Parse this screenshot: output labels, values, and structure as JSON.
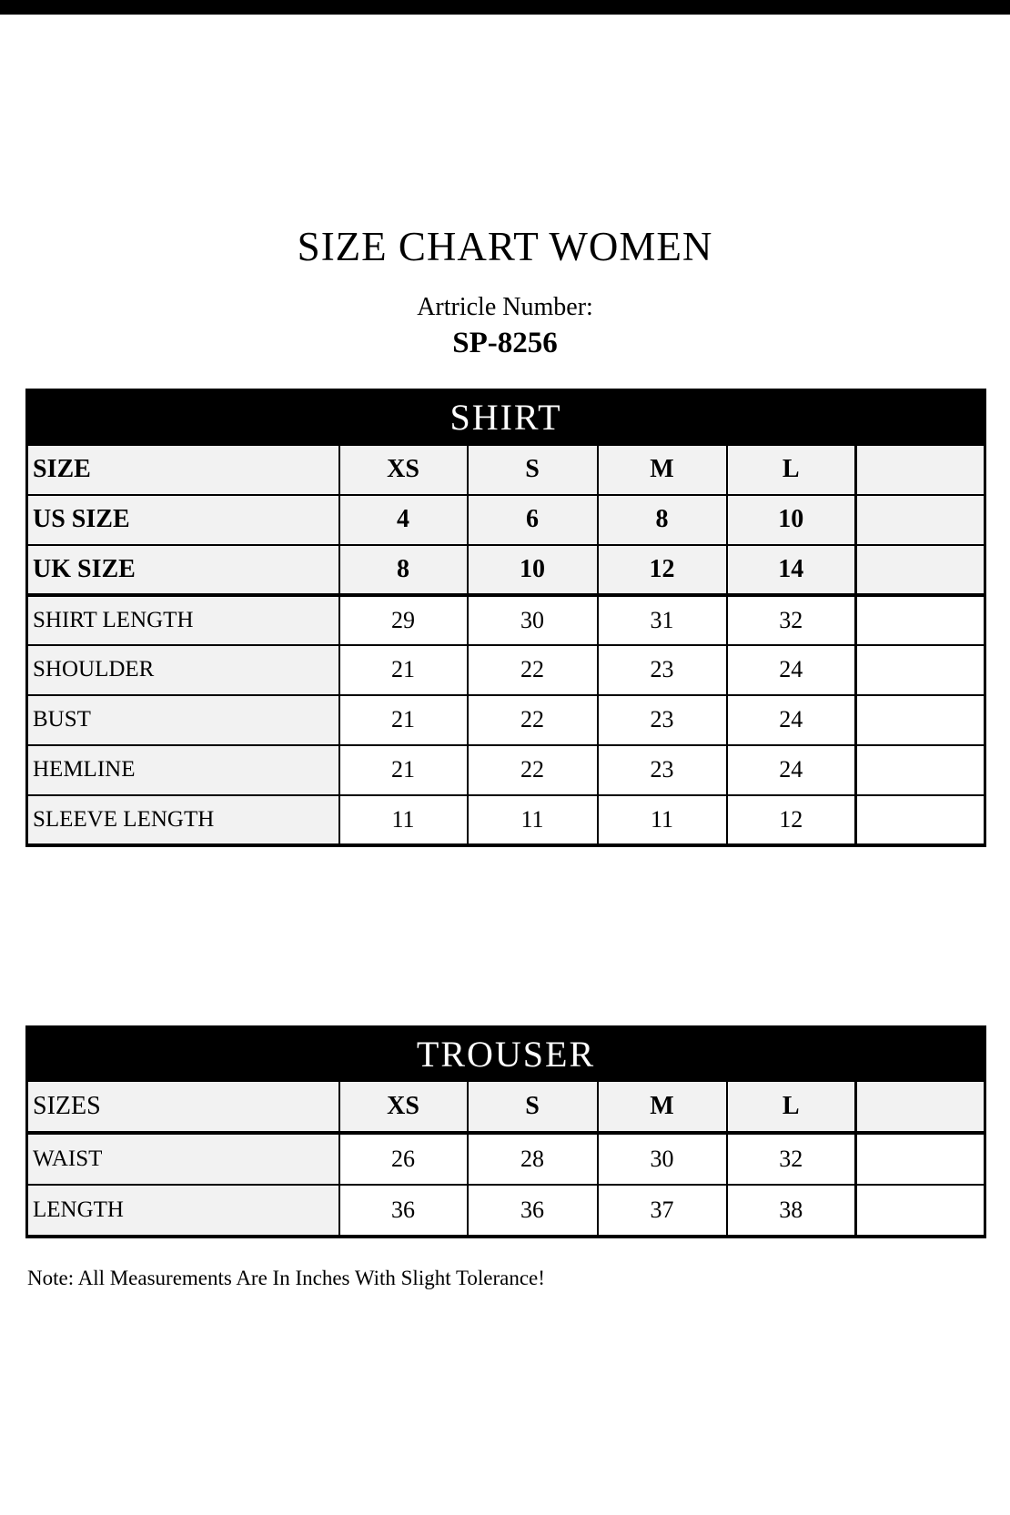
{
  "page": {
    "title": "SIZE CHART WOMEN",
    "article_label": "Artricle Number:",
    "article_number": "SP-8256",
    "note": "Note: All Measurements Are In Inches With Slight Tolerance!"
  },
  "colors": {
    "banner_bg": "#000000",
    "banner_text": "#ffffff",
    "header_cell_bg": "#f2f2f2",
    "value_cell_bg": "#ffffff",
    "border": "#000000",
    "page_bg": "#ffffff",
    "text": "#000000"
  },
  "shirt_table": {
    "banner": "SHIRT",
    "header_rows": [
      {
        "label": "SIZE",
        "values": [
          "XS",
          "S",
          "M",
          "L",
          ""
        ]
      },
      {
        "label": "US SIZE",
        "values": [
          "4",
          "6",
          "8",
          "10",
          ""
        ]
      },
      {
        "label": "UK SIZE",
        "values": [
          "8",
          "10",
          "12",
          "14",
          ""
        ]
      }
    ],
    "measure_rows": [
      {
        "label": "SHIRT LENGTH",
        "values": [
          "29",
          "30",
          "31",
          "32",
          ""
        ]
      },
      {
        "label": "SHOULDER",
        "values": [
          "21",
          "22",
          "23",
          "24",
          ""
        ]
      },
      {
        "label": "BUST",
        "values": [
          "21",
          "22",
          "23",
          "24",
          ""
        ]
      },
      {
        "label": "HEMLINE",
        "values": [
          "21",
          "22",
          "23",
          "24",
          ""
        ]
      },
      {
        "label": "SLEEVE LENGTH",
        "values": [
          "11",
          "11",
          "11",
          "12",
          ""
        ]
      }
    ]
  },
  "trouser_table": {
    "banner": "TROUSER",
    "header_rows": [
      {
        "label": "SIZES",
        "values": [
          "XS",
          "S",
          "M",
          "L",
          ""
        ]
      }
    ],
    "measure_rows": [
      {
        "label": "WAIST",
        "values": [
          "26",
          "28",
          "30",
          "32",
          ""
        ]
      },
      {
        "label": "LENGTH",
        "values": [
          "36",
          "36",
          "37",
          "38",
          ""
        ]
      }
    ]
  }
}
